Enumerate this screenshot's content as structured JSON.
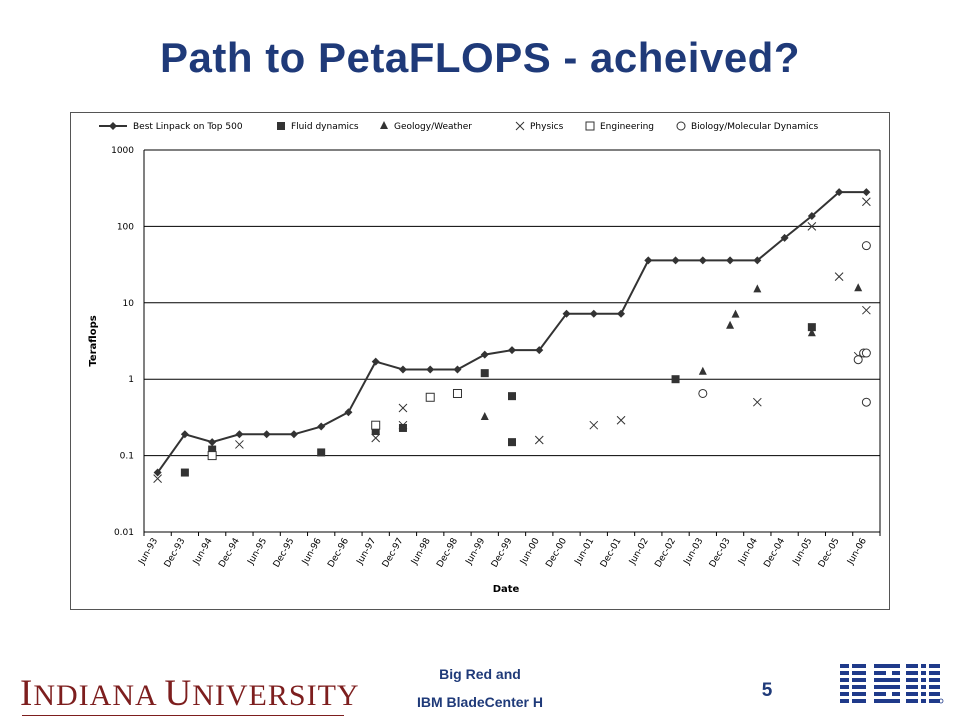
{
  "slide": {
    "title": "Path to PetaFLOPS - acheived?",
    "footer_line1": "Big Red and",
    "footer_line2": "IBM BladeCenter H",
    "page_number": "5",
    "left_logo_text": "Indiana University",
    "right_logo_text": "IBM"
  },
  "colors": {
    "title": "#1f3a79",
    "iu_crimson": "#7d1e1e",
    "ibm_blue": "#1f3a8a",
    "marks": "#333333"
  },
  "chart_data": {
    "type": "scatter",
    "title": "",
    "xlabel": "Date",
    "ylabel": "Teraflops",
    "yscale": "log",
    "ylim": [
      0.01,
      1000
    ],
    "yticks": [
      "1000",
      "100",
      "10",
      "1",
      "0.1",
      "0.01"
    ],
    "ytick_values": [
      1000,
      100,
      10,
      1,
      0.1,
      0.01
    ],
    "categories": [
      "Jun-93",
      "Dec-93",
      "Jun-94",
      "Dec-94",
      "Jun-95",
      "Dec-95",
      "Jun-96",
      "Dec-96",
      "Jun-97",
      "Dec-97",
      "Jun-98",
      "Dec-98",
      "Jun-99",
      "Dec-99",
      "Jun-00",
      "Dec-00",
      "Jun-01",
      "Dec-01",
      "Jun-02",
      "Dec-02",
      "Jun-03",
      "Dec-03",
      "Jun-04",
      "Dec-04",
      "Jun-05",
      "Dec-05",
      "Jun-06"
    ],
    "grid": "horizontal",
    "legend_position": "top",
    "series": [
      {
        "name": "Best Linpack on Top 500",
        "marker": "diamond",
        "line": true,
        "points": [
          [
            0,
            0.06
          ],
          [
            1,
            0.19
          ],
          [
            2,
            0.15
          ],
          [
            3,
            0.19
          ],
          [
            4,
            0.19
          ],
          [
            5,
            0.19
          ],
          [
            6,
            0.24
          ],
          [
            7,
            0.37
          ],
          [
            8,
            1.7
          ],
          [
            9,
            1.34
          ],
          [
            10,
            1.34
          ],
          [
            11,
            1.34
          ],
          [
            12,
            2.1
          ],
          [
            13,
            2.4
          ],
          [
            14,
            2.4
          ],
          [
            15,
            7.2
          ],
          [
            16,
            7.2
          ],
          [
            17,
            7.2
          ],
          [
            18,
            35.9
          ],
          [
            19,
            35.9
          ],
          [
            20,
            35.9
          ],
          [
            21,
            35.9
          ],
          [
            22,
            35.9
          ],
          [
            23,
            70.7
          ],
          [
            24,
            136.8
          ],
          [
            25,
            280.6
          ],
          [
            26,
            280.6
          ]
        ]
      },
      {
        "name": "Fluid dynamics",
        "marker": "square-filled",
        "line": false,
        "points": [
          [
            1,
            0.06
          ],
          [
            2,
            0.12
          ],
          [
            6,
            0.11
          ],
          [
            8,
            0.21
          ],
          [
            9,
            0.23
          ],
          [
            12,
            1.2
          ],
          [
            13,
            0.6
          ],
          [
            13,
            0.15
          ],
          [
            19,
            1.0
          ],
          [
            24,
            4.8
          ]
        ]
      },
      {
        "name": "Geology/Weather",
        "marker": "triangle",
        "line": false,
        "points": [
          [
            12,
            0.32
          ],
          [
            20,
            1.25
          ],
          [
            21,
            5.0
          ],
          [
            21.2,
            7.0
          ],
          [
            22,
            15.0
          ],
          [
            24,
            4.0
          ],
          [
            25.7,
            15.5
          ]
        ]
      },
      {
        "name": "Physics",
        "marker": "x",
        "line": false,
        "points": [
          [
            0,
            0.05
          ],
          [
            2,
            0.1
          ],
          [
            3,
            0.14
          ],
          [
            8,
            0.17
          ],
          [
            9,
            0.25
          ],
          [
            9,
            0.42
          ],
          [
            14,
            0.16
          ],
          [
            16,
            0.25
          ],
          [
            17,
            0.29
          ],
          [
            22,
            0.5
          ],
          [
            24,
            100
          ],
          [
            25,
            22
          ],
          [
            25.7,
            2.0
          ],
          [
            26,
            8.0
          ],
          [
            26,
            210
          ]
        ]
      },
      {
        "name": "Engineering",
        "marker": "square-open",
        "line": false,
        "points": [
          [
            2,
            0.1
          ],
          [
            8,
            0.25
          ],
          [
            10,
            0.58
          ],
          [
            11,
            0.65
          ]
        ]
      },
      {
        "name": "Biology/Molecular Dynamics",
        "marker": "circle-open",
        "line": false,
        "points": [
          [
            20,
            0.65
          ],
          [
            25.7,
            1.8
          ],
          [
            25.9,
            2.2
          ],
          [
            26,
            2.2
          ],
          [
            26,
            0.5
          ],
          [
            26,
            56
          ]
        ]
      }
    ]
  }
}
